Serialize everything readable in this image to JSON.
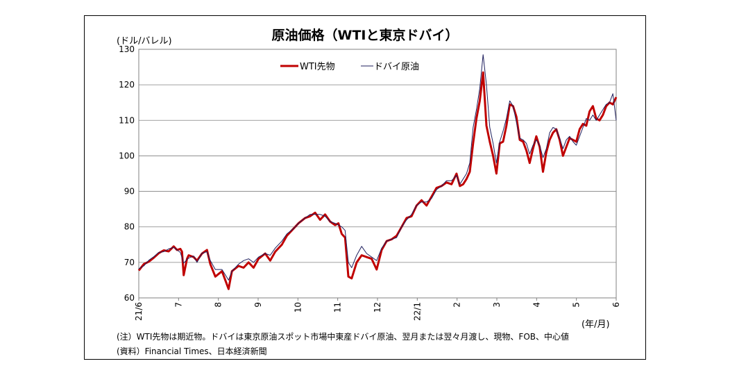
{
  "chart_data": {
    "type": "line",
    "title": "原油価格（WTIと東京ドバイ）",
    "ylabel": "(ドル/バレル)",
    "xlabel": "(年/月)",
    "ylim": [
      60,
      130
    ],
    "yticks": [
      60,
      70,
      80,
      90,
      100,
      110,
      120,
      130
    ],
    "grid": "horizontal",
    "legend_position": "top-left",
    "x_tick_labels": [
      "21/6",
      "7",
      "8",
      "9",
      "10",
      "11",
      "12",
      "22/1",
      "2",
      "3",
      "4",
      "5",
      "6"
    ],
    "series": [
      {
        "name": "WTI先物",
        "color": "#c00000",
        "values": [
          [
            0,
            67.7
          ],
          [
            3,
            69.5
          ],
          [
            6,
            70.2
          ],
          [
            9,
            71.3
          ],
          [
            12,
            72.6
          ],
          [
            15,
            73.4
          ],
          [
            18,
            73.1
          ],
          [
            21,
            74.5
          ],
          [
            23,
            73.5
          ],
          [
            25,
            73.8
          ],
          [
            26,
            73.0
          ],
          [
            27,
            66.4
          ],
          [
            29,
            71.0
          ],
          [
            30,
            72.0
          ],
          [
            33,
            71.5
          ],
          [
            35,
            70.5
          ],
          [
            38,
            72.5
          ],
          [
            41,
            73.5
          ],
          [
            43,
            69.5
          ],
          [
            46,
            66.0
          ],
          [
            50,
            67.5
          ],
          [
            54,
            62.5
          ],
          [
            56,
            67.5
          ],
          [
            60,
            69.0
          ],
          [
            63,
            68.5
          ],
          [
            66,
            70.0
          ],
          [
            69,
            68.5
          ],
          [
            72,
            71.0
          ],
          [
            76,
            72.5
          ],
          [
            79,
            70.5
          ],
          [
            82,
            73.0
          ],
          [
            86,
            75.0
          ],
          [
            89,
            77.5
          ],
          [
            93,
            79.5
          ],
          [
            96,
            81.0
          ],
          [
            100,
            82.5
          ],
          [
            103,
            83.0
          ],
          [
            106,
            84.0
          ],
          [
            109,
            82.0
          ],
          [
            112,
            83.5
          ],
          [
            115,
            81.5
          ],
          [
            118,
            80.5
          ],
          [
            120,
            81.0
          ],
          [
            122,
            78.0
          ],
          [
            124,
            77.0
          ],
          [
            126,
            66.0
          ],
          [
            128,
            65.5
          ],
          [
            131,
            70.0
          ],
          [
            134,
            72.0
          ],
          [
            137,
            71.5
          ],
          [
            140,
            71.0
          ],
          [
            143,
            68.0
          ],
          [
            146,
            73.5
          ],
          [
            149,
            76.0
          ],
          [
            152,
            76.5
          ],
          [
            155,
            77.5
          ],
          [
            158,
            80.0
          ],
          [
            161,
            82.5
          ],
          [
            164,
            83.0
          ],
          [
            167,
            86.0
          ],
          [
            170,
            87.5
          ],
          [
            173,
            86.0
          ],
          [
            176,
            88.5
          ],
          [
            179,
            91.0
          ],
          [
            182,
            91.5
          ],
          [
            185,
            92.5
          ],
          [
            188,
            92.0
          ],
          [
            191,
            95.0
          ],
          [
            193,
            91.5
          ],
          [
            195,
            92.0
          ],
          [
            197,
            93.5
          ],
          [
            199,
            95.5
          ],
          [
            201,
            103.5
          ],
          [
            203,
            110.5
          ],
          [
            205,
            115.5
          ],
          [
            207,
            123.5
          ],
          [
            209,
            108.5
          ],
          [
            211,
            104.0
          ],
          [
            213,
            100.0
          ],
          [
            215,
            95.0
          ],
          [
            217,
            103.5
          ],
          [
            219,
            104.0
          ],
          [
            221,
            108.5
          ],
          [
            223,
            114.5
          ],
          [
            225,
            114.0
          ],
          [
            227,
            111.0
          ],
          [
            229,
            104.5
          ],
          [
            231,
            104.0
          ],
          [
            233,
            101.5
          ],
          [
            235,
            98.0
          ],
          [
            237,
            102.0
          ],
          [
            239,
            105.5
          ],
          [
            241,
            102.5
          ],
          [
            243,
            95.5
          ],
          [
            245,
            101.0
          ],
          [
            247,
            104.5
          ],
          [
            249,
            106.5
          ],
          [
            251,
            107.5
          ],
          [
            253,
            104.5
          ],
          [
            255,
            100.0
          ],
          [
            257,
            102.5
          ],
          [
            259,
            105.0
          ],
          [
            261,
            104.5
          ],
          [
            263,
            104.0
          ],
          [
            265,
            107.5
          ],
          [
            267,
            109.0
          ],
          [
            269,
            108.5
          ],
          [
            271,
            112.5
          ],
          [
            273,
            114.0
          ],
          [
            275,
            110.5
          ],
          [
            277,
            110.0
          ],
          [
            279,
            111.5
          ],
          [
            281,
            114.0
          ],
          [
            283,
            115.0
          ],
          [
            285,
            114.5
          ],
          [
            287,
            116.5
          ]
        ]
      },
      {
        "name": "ドバイ原油",
        "color": "#1f1f5e",
        "values": [
          [
            0,
            68.2
          ],
          [
            3,
            69.0
          ],
          [
            6,
            70.6
          ],
          [
            9,
            71.6
          ],
          [
            12,
            72.8
          ],
          [
            15,
            73.0
          ],
          [
            18,
            73.8
          ],
          [
            21,
            74.2
          ],
          [
            23,
            73.5
          ],
          [
            25,
            72.8
          ],
          [
            27,
            69.8
          ],
          [
            29,
            70.8
          ],
          [
            30,
            71.2
          ],
          [
            33,
            71.8
          ],
          [
            35,
            70.0
          ],
          [
            38,
            72.6
          ],
          [
            41,
            73.0
          ],
          [
            43,
            70.5
          ],
          [
            46,
            68.0
          ],
          [
            50,
            68.0
          ],
          [
            54,
            65.0
          ],
          [
            56,
            67.5
          ],
          [
            60,
            69.5
          ],
          [
            63,
            70.5
          ],
          [
            66,
            71.0
          ],
          [
            69,
            70.0
          ],
          [
            72,
            71.5
          ],
          [
            76,
            72.5
          ],
          [
            79,
            72.0
          ],
          [
            82,
            74.0
          ],
          [
            86,
            76.0
          ],
          [
            89,
            78.0
          ],
          [
            93,
            79.5
          ],
          [
            96,
            81.0
          ],
          [
            100,
            82.5
          ],
          [
            103,
            83.5
          ],
          [
            106,
            83.5
          ],
          [
            109,
            83.5
          ],
          [
            112,
            83.0
          ],
          [
            115,
            81.5
          ],
          [
            118,
            81.0
          ],
          [
            120,
            80.5
          ],
          [
            122,
            80.0
          ],
          [
            124,
            79.0
          ],
          [
            126,
            70.0
          ],
          [
            128,
            68.5
          ],
          [
            131,
            72.0
          ],
          [
            134,
            74.5
          ],
          [
            137,
            72.5
          ],
          [
            140,
            71.5
          ],
          [
            143,
            70.5
          ],
          [
            146,
            74.0
          ],
          [
            149,
            76.0
          ],
          [
            152,
            76.5
          ],
          [
            155,
            77.0
          ],
          [
            158,
            80.0
          ],
          [
            161,
            82.0
          ],
          [
            164,
            83.5
          ],
          [
            167,
            86.0
          ],
          [
            170,
            87.0
          ],
          [
            173,
            87.0
          ],
          [
            176,
            88.0
          ],
          [
            179,
            90.5
          ],
          [
            182,
            91.5
          ],
          [
            185,
            93.0
          ],
          [
            188,
            93.0
          ],
          [
            191,
            94.5
          ],
          [
            193,
            92.0
          ],
          [
            195,
            93.5
          ],
          [
            197,
            95.0
          ],
          [
            199,
            98.0
          ],
          [
            201,
            108.0
          ],
          [
            203,
            113.0
          ],
          [
            205,
            119.0
          ],
          [
            207,
            128.5
          ],
          [
            209,
            120.0
          ],
          [
            211,
            108.0
          ],
          [
            213,
            103.5
          ],
          [
            215,
            98.0
          ],
          [
            217,
            104.0
          ],
          [
            219,
            107.0
          ],
          [
            221,
            110.5
          ],
          [
            223,
            115.5
          ],
          [
            225,
            114.0
          ],
          [
            227,
            109.5
          ],
          [
            229,
            105.0
          ],
          [
            231,
            104.5
          ],
          [
            233,
            103.5
          ],
          [
            235,
            100.5
          ],
          [
            237,
            103.0
          ],
          [
            239,
            104.5
          ],
          [
            241,
            103.0
          ],
          [
            243,
            99.5
          ],
          [
            245,
            102.0
          ],
          [
            247,
            106.5
          ],
          [
            249,
            108.0
          ],
          [
            251,
            107.5
          ],
          [
            253,
            105.0
          ],
          [
            255,
            102.0
          ],
          [
            257,
            104.5
          ],
          [
            259,
            105.5
          ],
          [
            261,
            104.0
          ],
          [
            263,
            103.0
          ],
          [
            265,
            105.5
          ],
          [
            267,
            108.0
          ],
          [
            269,
            110.5
          ],
          [
            271,
            110.0
          ],
          [
            273,
            111.5
          ],
          [
            275,
            110.0
          ],
          [
            277,
            111.5
          ],
          [
            279,
            113.0
          ],
          [
            281,
            114.5
          ],
          [
            283,
            115.0
          ],
          [
            285,
            117.5
          ],
          [
            287,
            110.0
          ]
        ]
      }
    ]
  },
  "notes": {
    "note": "(注）WTI先物は期近物。ドバイは東京原油スポット市場中東産ドバイ原油、翌月または翌々月渡し、現物、FOB、中心値",
    "source": "(資料）Financial Times、日本経済新聞"
  }
}
